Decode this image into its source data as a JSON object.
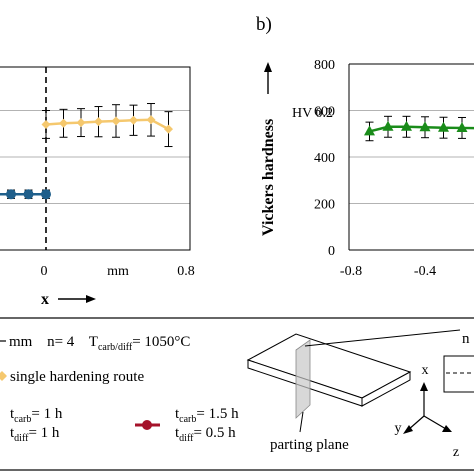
{
  "panel_b_label": "b)",
  "legend": {
    "line1_unit": "mm",
    "line1_n": "n= 4",
    "line1_temp_prefix": "T",
    "line1_temp_sub": "carb/diff",
    "line1_temp_suffix": "= 1050°C",
    "single_route_label": "single hardening route",
    "entry_a": {
      "carb_prefix": "t",
      "carb_sub": "carb",
      "carb_value": "= 1 h",
      "diff_prefix": "t",
      "diff_sub": "diff",
      "diff_value": "= 1 h"
    },
    "entry_b": {
      "carb_prefix": "t",
      "carb_sub": "carb",
      "carb_value": "= 1.5 h",
      "diff_prefix": "t",
      "diff_sub": "diff",
      "diff_value": "= 0.5 h"
    },
    "parting_plane_label": "parting plane",
    "axes": {
      "x": "x",
      "y": "y",
      "z": "z"
    },
    "cropped_label_fragment": "n"
  },
  "colors": {
    "yellow": "#f5c86e",
    "blue": "#1f5f8b",
    "green": "#1a8c1a",
    "darkred": "#a5122a",
    "grid": "#b3b3b3"
  },
  "chart_data": [
    {
      "panel": "a",
      "type": "line",
      "xlabel": "x",
      "x_unit_label": "mm",
      "xlim": [
        -0.8,
        0.8
      ],
      "x_ticks_visible": [
        "0",
        "0.8"
      ],
      "grid": true,
      "series": [
        {
          "name": "single hardening route",
          "color": "yellow",
          "marker": "diamond",
          "x": [
            0.0,
            0.1,
            0.2,
            0.3,
            0.4,
            0.5,
            0.6,
            0.7
          ],
          "y": [
            540,
            545,
            548,
            552,
            555,
            558,
            560,
            520
          ],
          "err": [
            60,
            60,
            60,
            65,
            70,
            65,
            70,
            75
          ]
        },
        {
          "name": "",
          "color": "blue",
          "marker": "circle",
          "x": [
            -0.3,
            -0.2,
            -0.1,
            0.0
          ],
          "y": [
            240,
            240,
            240,
            240
          ],
          "err": [
            18,
            18,
            18,
            18
          ]
        }
      ],
      "annotations": [
        "dashed vertical line at x = 0"
      ]
    },
    {
      "panel": "b",
      "type": "line",
      "ylabel": "Vickers hardness",
      "y_unit_label": "HV 0.2",
      "ylim": [
        0,
        800
      ],
      "y_ticks": [
        "0",
        "200",
        "400",
        "600",
        "800"
      ],
      "xlim": [
        -0.8,
        0.8
      ],
      "x_ticks_visible": [
        "-0.8",
        "-0.4"
      ],
      "grid": true,
      "series": [
        {
          "name": "",
          "color": "green",
          "marker": "triangle",
          "x": [
            -0.7,
            -0.6,
            -0.5,
            -0.4,
            -0.3,
            -0.2,
            -0.1,
            0.0
          ],
          "y": [
            510,
            530,
            530,
            528,
            526,
            525,
            524,
            523
          ],
          "err": [
            40,
            45,
            45,
            45,
            45,
            45,
            45,
            45
          ]
        }
      ]
    }
  ]
}
